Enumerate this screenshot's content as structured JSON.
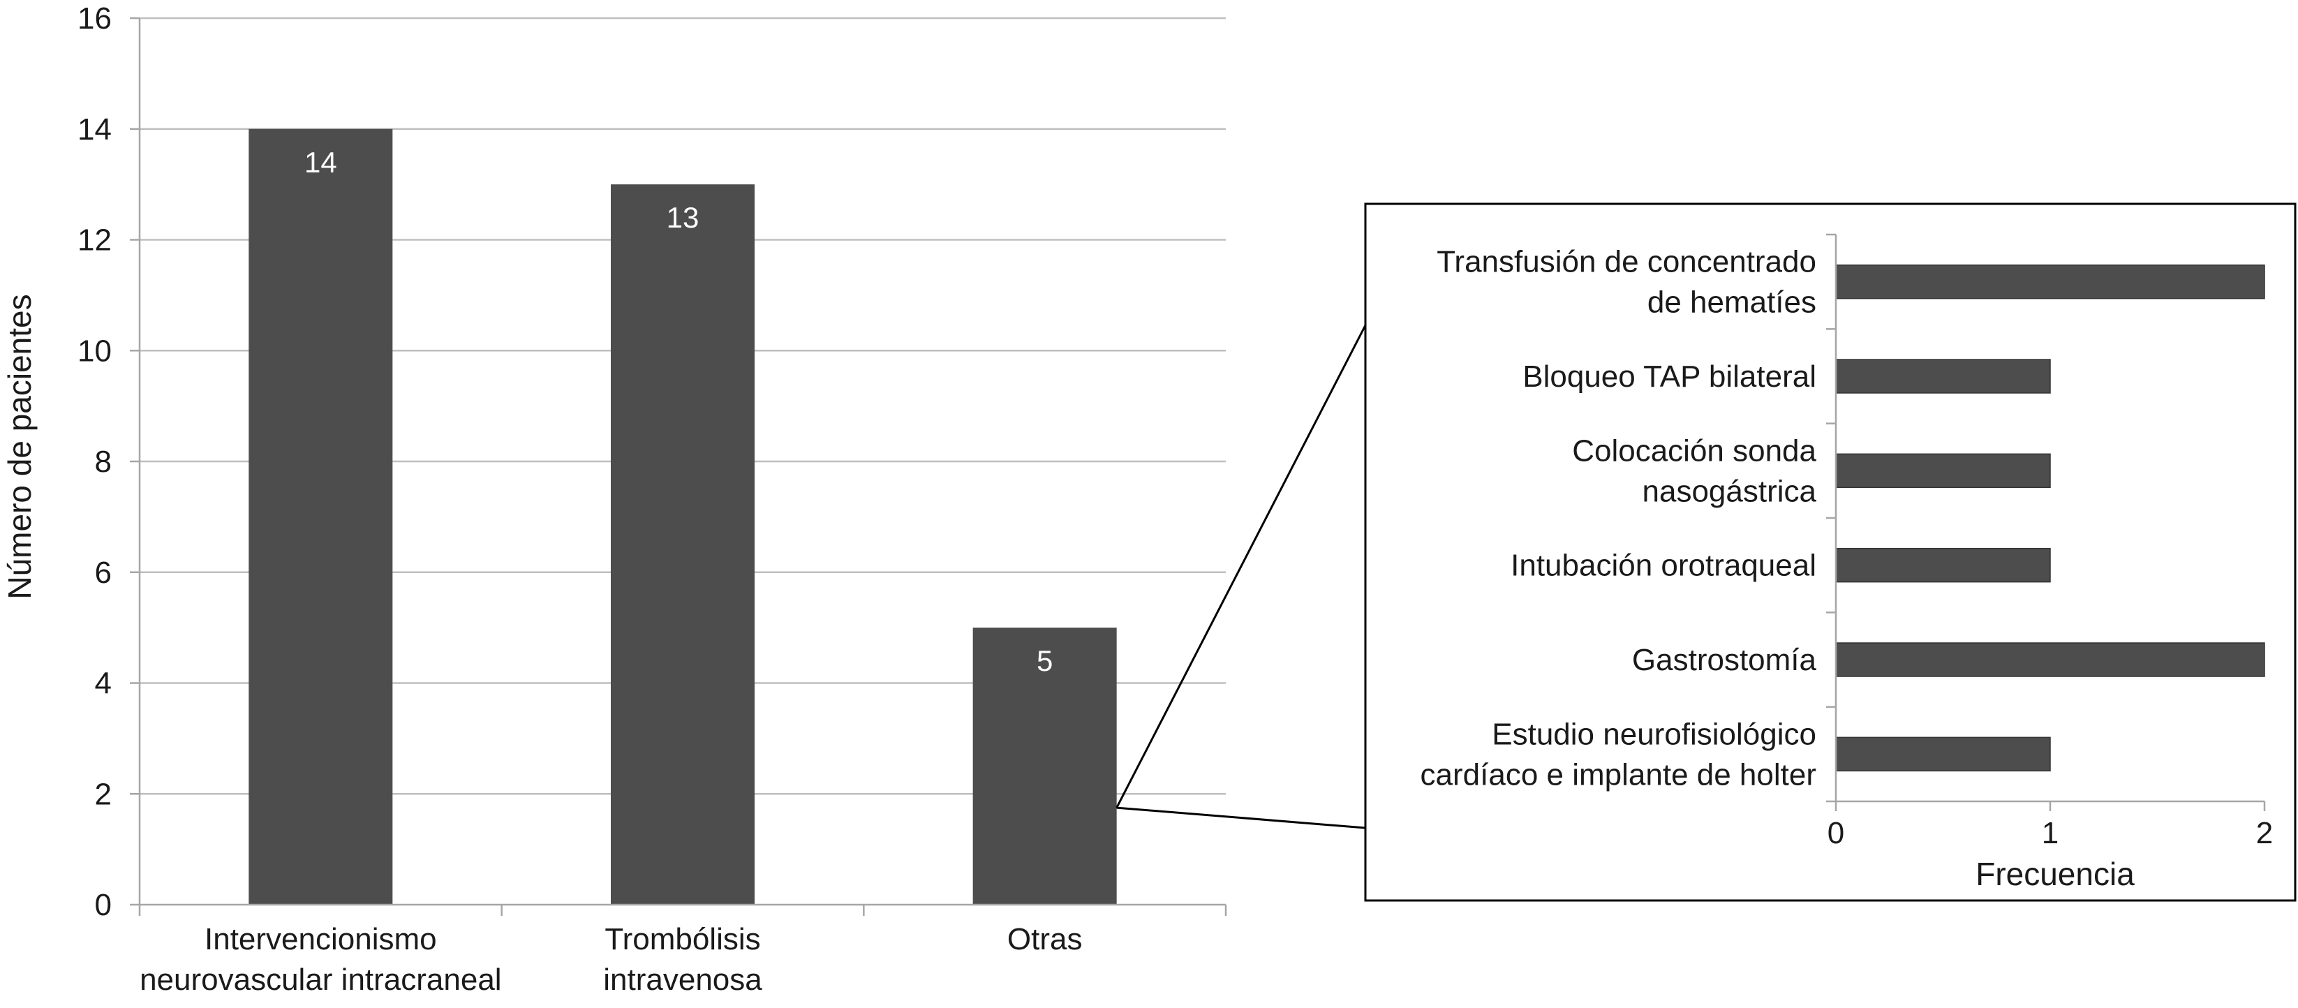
{
  "chart_data": [
    {
      "type": "bar",
      "title": "",
      "xlabel": "",
      "ylabel": "Número de pacientes",
      "ylim": [
        0,
        16
      ],
      "yticks": [
        0,
        2,
        4,
        6,
        8,
        10,
        12,
        14,
        16
      ],
      "grid": true,
      "categories": [
        [
          "Intervencionismo",
          "neurovascular intracraneal"
        ],
        [
          "Trombólisis",
          "intravenosa"
        ],
        [
          "Otras"
        ]
      ],
      "values": [
        14,
        13,
        5
      ],
      "data_labels": [
        "14",
        "13",
        "5"
      ],
      "bar_color": "#4d4d4d"
    },
    {
      "type": "bar",
      "orientation": "horizontal",
      "title": "",
      "xlabel": "Frecuencia",
      "ylabel": "",
      "xlim": [
        0,
        2
      ],
      "xticks": [
        0,
        1,
        2
      ],
      "grid": false,
      "categories": [
        [
          "Transfusión de concentrado",
          "de hematíes"
        ],
        [
          "Bloqueo TAP bilateral"
        ],
        [
          "Colocación sonda",
          "nasogástrica"
        ],
        [
          "Intubación orotraqueal"
        ],
        [
          "Gastrostomía"
        ],
        [
          "Estudio neurofisiológico",
          "cardíaco e implante de holter"
        ]
      ],
      "values": [
        2,
        1,
        1,
        1,
        2,
        1
      ],
      "bar_color": "#4d4d4d",
      "zoom_of": "Otras"
    }
  ]
}
